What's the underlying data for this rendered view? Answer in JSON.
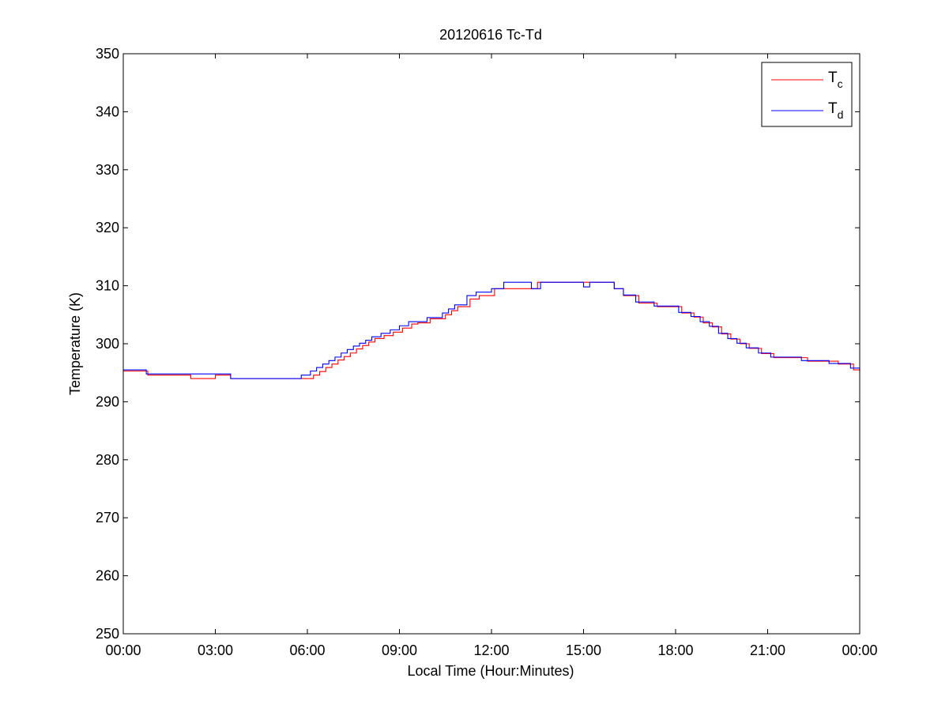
{
  "chart_data": {
    "type": "line",
    "title": "20120616 Tc-Td",
    "xlabel": "Local Time (Hour:Minutes)",
    "ylabel": "Temperature (K)",
    "xlim": [
      0,
      24
    ],
    "ylim": [
      250,
      350
    ],
    "x_ticks": [
      0,
      3,
      6,
      9,
      12,
      15,
      18,
      21,
      24
    ],
    "x_tick_labels": [
      "00:00",
      "03:00",
      "06:00",
      "09:00",
      "12:00",
      "15:00",
      "18:00",
      "21:00",
      "00:00"
    ],
    "y_ticks": [
      250,
      260,
      270,
      280,
      290,
      300,
      310,
      320,
      330,
      340,
      350
    ],
    "y_tick_labels": [
      "250",
      "260",
      "270",
      "280",
      "290",
      "300",
      "310",
      "320",
      "330",
      "340",
      "350"
    ],
    "grid": false,
    "legend_position": "top-right",
    "x_unit": "hours",
    "series": [
      {
        "name": "T",
        "subscript": "c",
        "color": "#ff0000",
        "step": true,
        "x": [
          0.0,
          0.8,
          2.2,
          3.0,
          3.5,
          5.9,
          6.2,
          6.4,
          6.6,
          6.8,
          7.0,
          7.2,
          7.4,
          7.6,
          7.8,
          8.0,
          8.2,
          8.5,
          8.8,
          9.1,
          9.4,
          9.6,
          10.0,
          10.5,
          10.7,
          10.9,
          11.3,
          11.6,
          12.1,
          13.0,
          13.5,
          16.0,
          16.3,
          16.8,
          17.4,
          18.2,
          18.6,
          18.9,
          19.2,
          19.5,
          19.8,
          20.1,
          20.4,
          20.8,
          21.2,
          22.3,
          23.3,
          23.8,
          24.0
        ],
        "y": [
          295.3,
          294.6,
          294.0,
          294.6,
          294.0,
          294.0,
          294.6,
          295.2,
          295.9,
          296.5,
          297.2,
          297.8,
          298.4,
          299.1,
          299.7,
          300.3,
          300.9,
          301.4,
          302.0,
          302.7,
          303.4,
          303.6,
          304.3,
          305.0,
          305.7,
          306.4,
          307.7,
          308.3,
          309.5,
          309.5,
          310.6,
          309.5,
          308.3,
          307.0,
          306.4,
          305.3,
          304.6,
          303.6,
          302.9,
          301.7,
          300.8,
          300.0,
          299.2,
          298.3,
          297.6,
          297.0,
          296.5,
          295.5,
          295.3
        ]
      },
      {
        "name": "T",
        "subscript": "d",
        "color": "#0000ff",
        "step": true,
        "x": [
          0.0,
          0.75,
          3.5,
          5.8,
          6.1,
          6.3,
          6.5,
          6.7,
          6.9,
          7.1,
          7.3,
          7.5,
          7.7,
          7.9,
          8.1,
          8.4,
          8.7,
          9.0,
          9.3,
          9.5,
          9.9,
          10.4,
          10.6,
          10.8,
          11.2,
          11.5,
          12.0,
          12.4,
          13.3,
          13.6,
          15.0,
          15.2,
          16.0,
          16.3,
          16.7,
          17.3,
          18.1,
          18.5,
          18.8,
          19.1,
          19.4,
          19.7,
          20.0,
          20.3,
          20.7,
          21.1,
          22.1,
          23.0,
          23.7,
          24.0
        ],
        "y": [
          295.5,
          294.8,
          294.0,
          294.6,
          295.3,
          295.9,
          296.5,
          297.1,
          297.7,
          298.4,
          299.0,
          299.6,
          300.1,
          300.6,
          301.2,
          301.8,
          302.4,
          303.1,
          303.8,
          303.8,
          304.5,
          305.3,
          306.0,
          306.7,
          308.3,
          308.9,
          309.5,
          310.6,
          309.5,
          310.6,
          309.8,
          310.6,
          309.5,
          308.4,
          307.2,
          306.5,
          305.4,
          304.7,
          303.8,
          303.0,
          301.8,
          300.9,
          300.1,
          299.3,
          298.4,
          297.7,
          297.1,
          296.6,
          295.8,
          295.5
        ]
      }
    ]
  }
}
